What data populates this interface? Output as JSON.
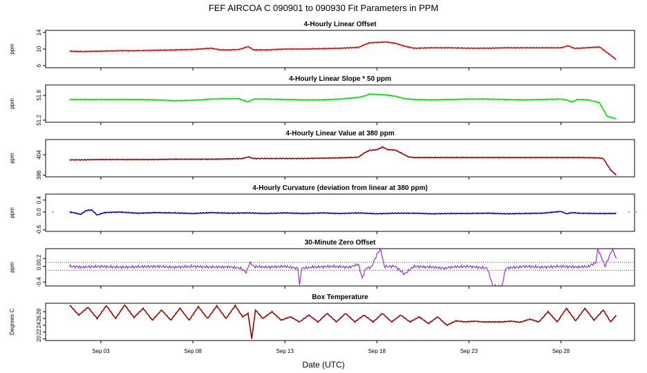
{
  "figure": {
    "title": "FEF   AIRCOA C   090901 to 090930   Fit Parameters in PPM",
    "xlabel": "Date (UTC)",
    "x_tick_labels": [
      "Sep 03",
      "Sep 08",
      "Sep 13",
      "Sep 18",
      "Sep 23",
      "Sep 28"
    ]
  },
  "chart_data": [
    {
      "type": "line",
      "title": "4-Hourly Linear Offset",
      "ylabel": "ppm",
      "color": "#dd0000",
      "x_unit": "day of September 2009 (UTC)",
      "xlim": [
        0.0,
        32.0
      ],
      "ylim": [
        5.5,
        14.5
      ],
      "yticks": [
        6,
        10,
        14
      ],
      "ytick_labels": [
        "6",
        "10",
        "14"
      ],
      "ref_lines": [],
      "points": [
        [
          1.3,
          9.5
        ],
        [
          2,
          9.4
        ],
        [
          3,
          9.5
        ],
        [
          4,
          9.6
        ],
        [
          5,
          9.6
        ],
        [
          6,
          9.7
        ],
        [
          7,
          9.8
        ],
        [
          8,
          9.9
        ],
        [
          9,
          10.2
        ],
        [
          9.5,
          9.8
        ],
        [
          10,
          9.8
        ],
        [
          10.5,
          9.9
        ],
        [
          11,
          10.6
        ],
        [
          11.3,
          9.8
        ],
        [
          12,
          9.8
        ],
        [
          13,
          10.0
        ],
        [
          14,
          10.0
        ],
        [
          15,
          10.1
        ],
        [
          16,
          10.2
        ],
        [
          16.5,
          10.3
        ],
        [
          17,
          10.4
        ],
        [
          17.3,
          11.0
        ],
        [
          17.6,
          11.5
        ],
        [
          18,
          11.6
        ],
        [
          18.5,
          11.7
        ],
        [
          19,
          11.4
        ],
        [
          19.5,
          10.7
        ],
        [
          20,
          10.2
        ],
        [
          21,
          10.3
        ],
        [
          22,
          10.3
        ],
        [
          23,
          10.2
        ],
        [
          24,
          10.2
        ],
        [
          25,
          10.3
        ],
        [
          26,
          10.3
        ],
        [
          27,
          10.3
        ],
        [
          28,
          10.3
        ],
        [
          28.4,
          10.8
        ],
        [
          28.7,
          10.2
        ],
        [
          29,
          10.2
        ],
        [
          29.7,
          10.4
        ],
        [
          30.1,
          10.5
        ],
        [
          30.4,
          9.5
        ],
        [
          31.0,
          7.5
        ]
      ]
    },
    {
      "type": "line",
      "title": "4-Hourly Linear Slope * 50 ppm",
      "ylabel": "ppm",
      "color": "#00dd00",
      "x_unit": "day of September 2009 (UTC)",
      "xlim": [
        0.0,
        32.0
      ],
      "ylim": [
        51.15,
        52.05
      ],
      "yticks": [
        51.2,
        51.8
      ],
      "ytick_labels": [
        "51.2",
        "51.8"
      ],
      "ref_lines": [],
      "points": [
        [
          1.3,
          51.7
        ],
        [
          2,
          51.7
        ],
        [
          3,
          51.7
        ],
        [
          4,
          51.7
        ],
        [
          5,
          51.7
        ],
        [
          6,
          51.69
        ],
        [
          7,
          51.67
        ],
        [
          8,
          51.68
        ],
        [
          9,
          51.71
        ],
        [
          10,
          51.72
        ],
        [
          10.5,
          51.72
        ],
        [
          11,
          51.64
        ],
        [
          11.3,
          51.71
        ],
        [
          12,
          51.71
        ],
        [
          13,
          51.7
        ],
        [
          14,
          51.69
        ],
        [
          15,
          51.69
        ],
        [
          16,
          51.71
        ],
        [
          16.5,
          51.73
        ],
        [
          17,
          51.75
        ],
        [
          17.3,
          51.78
        ],
        [
          17.6,
          51.83
        ],
        [
          18,
          51.82
        ],
        [
          18.5,
          51.81
        ],
        [
          19,
          51.78
        ],
        [
          19.5,
          51.72
        ],
        [
          20,
          51.7
        ],
        [
          21,
          51.69
        ],
        [
          22,
          51.7
        ],
        [
          23,
          51.71
        ],
        [
          24,
          51.71
        ],
        [
          25,
          51.7
        ],
        [
          26,
          51.69
        ],
        [
          27,
          51.7
        ],
        [
          28,
          51.71
        ],
        [
          28.3,
          51.69
        ],
        [
          28.6,
          51.64
        ],
        [
          28.9,
          51.7
        ],
        [
          29.5,
          51.69
        ],
        [
          30.1,
          51.62
        ],
        [
          30.5,
          51.3
        ],
        [
          31.0,
          51.23
        ]
      ]
    },
    {
      "type": "line",
      "title": "4-Hourly Linear Value at 380 ppm",
      "ylabel": "ppm",
      "color": "#990000",
      "x_unit": "day of September 2009 (UTC)",
      "xlim": [
        0.0,
        32.0
      ],
      "ylim": [
        397.5,
        408.5
      ],
      "yticks": [
        398,
        404
      ],
      "ytick_labels": [
        "398",
        "404"
      ],
      "ref_lines": [],
      "points": [
        [
          1.3,
          402.5
        ],
        [
          2,
          402.5
        ],
        [
          3,
          402.6
        ],
        [
          4,
          402.6
        ],
        [
          5,
          402.6
        ],
        [
          6,
          402.6
        ],
        [
          7,
          402.7
        ],
        [
          8,
          402.7
        ],
        [
          9,
          402.7
        ],
        [
          10,
          402.8
        ],
        [
          10.7,
          402.9
        ],
        [
          11,
          403.4
        ],
        [
          11.3,
          402.9
        ],
        [
          12,
          402.9
        ],
        [
          13,
          402.9
        ],
        [
          14,
          402.9
        ],
        [
          15,
          403.0
        ],
        [
          16,
          403.1
        ],
        [
          16.5,
          403.2
        ],
        [
          17,
          403.3
        ],
        [
          17.3,
          404.5
        ],
        [
          17.6,
          405.3
        ],
        [
          18,
          405.5
        ],
        [
          18.3,
          406.3
        ],
        [
          18.6,
          405.5
        ],
        [
          19,
          405.4
        ],
        [
          19.4,
          404.3
        ],
        [
          19.7,
          403.4
        ],
        [
          20,
          403.2
        ],
        [
          21,
          403.2
        ],
        [
          22,
          403.2
        ],
        [
          23,
          403.2
        ],
        [
          24,
          403.2
        ],
        [
          25,
          403.2
        ],
        [
          26,
          403.2
        ],
        [
          27,
          403.2
        ],
        [
          28,
          403.2
        ],
        [
          29,
          403.2
        ],
        [
          30,
          403.1
        ],
        [
          30.3,
          402.9
        ],
        [
          30.7,
          399.5
        ],
        [
          31.0,
          398.0
        ]
      ]
    },
    {
      "type": "line",
      "title": "4-Hourly Curvature (deviation from linear at 380 ppm)",
      "ylabel": "ppm",
      "color": "#0000cc",
      "x_unit": "day of September 2009 (UTC)",
      "xlim": [
        0.0,
        32.0
      ],
      "ylim": [
        -0.65,
        0.6
      ],
      "yticks": [
        -0.6,
        0.0,
        0.4
      ],
      "ytick_labels": [
        "-0.6",
        "0.0",
        "0.4"
      ],
      "ref_lines": [],
      "points": [
        [
          1.3,
          0.0
        ],
        [
          1.6,
          -0.03
        ],
        [
          1.9,
          -0.08
        ],
        [
          2.2,
          0.05
        ],
        [
          2.5,
          0.07
        ],
        [
          2.8,
          -0.1
        ],
        [
          3.2,
          -0.02
        ],
        [
          4,
          0.0
        ],
        [
          5,
          -0.04
        ],
        [
          6,
          -0.02
        ],
        [
          7,
          -0.03
        ],
        [
          8,
          -0.05
        ],
        [
          9,
          -0.02
        ],
        [
          10,
          -0.04
        ],
        [
          11,
          -0.03
        ],
        [
          12,
          -0.05
        ],
        [
          13,
          -0.03
        ],
        [
          14,
          -0.05
        ],
        [
          15,
          -0.03
        ],
        [
          16,
          -0.05
        ],
        [
          17,
          -0.03
        ],
        [
          18,
          -0.06
        ],
        [
          19,
          -0.04
        ],
        [
          20,
          -0.04
        ],
        [
          21,
          -0.06
        ],
        [
          22,
          -0.05
        ],
        [
          23,
          -0.05
        ],
        [
          24,
          -0.04
        ],
        [
          25,
          -0.06
        ],
        [
          26,
          -0.05
        ],
        [
          27,
          -0.04
        ],
        [
          28,
          0.02
        ],
        [
          28.3,
          -0.06
        ],
        [
          28.6,
          -0.02
        ],
        [
          29,
          -0.04
        ],
        [
          30,
          -0.05
        ],
        [
          31.0,
          -0.05
        ]
      ]
    },
    {
      "type": "line",
      "title": "30-Minute Zero Offset",
      "ylabel": "ppm",
      "color": "#9933cc",
      "x_unit": "day of September 2009 (UTC)",
      "xlim": [
        0.0,
        32.0
      ],
      "ylim": [
        -0.5,
        0.45
      ],
      "yticks": [
        -0.4,
        0.0,
        0.2
      ],
      "ytick_labels": [
        "-0.4",
        "0.0",
        "0.2"
      ],
      "ref_lines": [
        0.1,
        -0.1
      ],
      "points": [
        [
          1.3,
          0.0
        ],
        [
          2,
          -0.02
        ],
        [
          3,
          0.0
        ],
        [
          4,
          -0.02
        ],
        [
          5,
          -0.01
        ],
        [
          6,
          0.0
        ],
        [
          7,
          -0.02
        ],
        [
          8,
          0.0
        ],
        [
          9,
          -0.02
        ],
        [
          10,
          -0.01
        ],
        [
          10.6,
          -0.05
        ],
        [
          10.9,
          -0.15
        ],
        [
          11.1,
          0.1
        ],
        [
          11.3,
          0.0
        ],
        [
          12,
          -0.02
        ],
        [
          13,
          0.0
        ],
        [
          13.7,
          -0.05
        ],
        [
          13.8,
          -0.5
        ],
        [
          13.9,
          -0.05
        ],
        [
          14.5,
          -0.02
        ],
        [
          15.5,
          0.0
        ],
        [
          16.5,
          -0.02
        ],
        [
          17.0,
          0.05
        ],
        [
          17.2,
          -0.3
        ],
        [
          17.4,
          -0.05
        ],
        [
          17.7,
          -0.02
        ],
        [
          18.0,
          0.3
        ],
        [
          18.2,
          0.45
        ],
        [
          18.4,
          0.0
        ],
        [
          19,
          0.0
        ],
        [
          19.5,
          -0.2
        ],
        [
          20,
          0.0
        ],
        [
          21,
          -0.02
        ],
        [
          21.7,
          -0.05
        ],
        [
          22,
          -0.02
        ],
        [
          23,
          0.0
        ],
        [
          24,
          -0.05
        ],
        [
          24.3,
          -0.5
        ],
        [
          24.8,
          -0.5
        ],
        [
          25,
          -0.05
        ],
        [
          26,
          0.0
        ],
        [
          27,
          -0.02
        ],
        [
          28,
          0.0
        ],
        [
          29,
          -0.02
        ],
        [
          29.5,
          0.0
        ],
        [
          29.9,
          0.1
        ],
        [
          30.0,
          0.45
        ],
        [
          30.4,
          0.0
        ],
        [
          30.8,
          0.45
        ],
        [
          31.0,
          0.2
        ]
      ]
    },
    {
      "type": "line",
      "title": "Box Temperature",
      "ylabel": "Degrees C",
      "color": "#990000",
      "x_unit": "day of September 2009 (UTC)",
      "xlim": [
        0.0,
        32.0
      ],
      "ylim": [
        19.5,
        30.5
      ],
      "yticks": [
        20,
        22,
        24,
        26,
        28
      ],
      "ytick_labels": [
        "20",
        "22",
        "24",
        "26",
        "28"
      ],
      "ref_lines": [],
      "points": [
        [
          1.3,
          30.0
        ],
        [
          1.8,
          27.0
        ],
        [
          2.3,
          29.3
        ],
        [
          2.8,
          26.0
        ],
        [
          3.3,
          29.8
        ],
        [
          3.8,
          26.0
        ],
        [
          4.3,
          30.0
        ],
        [
          4.8,
          26.3
        ],
        [
          5.3,
          29.0
        ],
        [
          5.8,
          25.5
        ],
        [
          6.3,
          28.5
        ],
        [
          6.8,
          25.5
        ],
        [
          7.3,
          29.0
        ],
        [
          7.8,
          25.5
        ],
        [
          8.3,
          29.5
        ],
        [
          8.8,
          26.0
        ],
        [
          9.3,
          29.7
        ],
        [
          9.8,
          26.0
        ],
        [
          10.3,
          29.8
        ],
        [
          10.7,
          26.5
        ],
        [
          11.0,
          27.5
        ],
        [
          11.2,
          20.0
        ],
        [
          11.4,
          28.5
        ],
        [
          11.8,
          26.0
        ],
        [
          12.3,
          28.0
        ],
        [
          12.8,
          25.5
        ],
        [
          13.3,
          26.5
        ],
        [
          13.8,
          25.0
        ],
        [
          14.3,
          27.0
        ],
        [
          14.8,
          25.0
        ],
        [
          15.3,
          27.5
        ],
        [
          15.8,
          25.0
        ],
        [
          16.3,
          27.5
        ],
        [
          16.8,
          25.0
        ],
        [
          17.3,
          27.0
        ],
        [
          17.8,
          25.0
        ],
        [
          18.3,
          27.5
        ],
        [
          18.8,
          25.0
        ],
        [
          19.3,
          27.0
        ],
        [
          19.8,
          25.0
        ],
        [
          20.3,
          26.5
        ],
        [
          20.8,
          24.5
        ],
        [
          21.3,
          26.5
        ],
        [
          21.8,
          24.0
        ],
        [
          22.3,
          25.3
        ],
        [
          22.8,
          25.0
        ],
        [
          23.3,
          25.2
        ],
        [
          23.8,
          25.0
        ],
        [
          24.3,
          25.0
        ],
        [
          24.8,
          25.0
        ],
        [
          25.3,
          25.2
        ],
        [
          25.8,
          24.9
        ],
        [
          26.3,
          25.8
        ],
        [
          26.8,
          25.0
        ],
        [
          27.3,
          28.0
        ],
        [
          27.8,
          25.0
        ],
        [
          28.3,
          29.0
        ],
        [
          28.8,
          25.3
        ],
        [
          29.3,
          29.0
        ],
        [
          29.8,
          25.5
        ],
        [
          30.3,
          28.5
        ],
        [
          30.7,
          25.0
        ],
        [
          31.0,
          27.0
        ]
      ]
    }
  ]
}
